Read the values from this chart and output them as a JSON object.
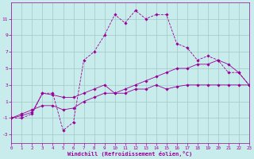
{
  "hours": [
    0,
    1,
    2,
    3,
    4,
    5,
    6,
    7,
    8,
    9,
    10,
    11,
    12,
    13,
    14,
    15,
    16,
    17,
    18,
    19,
    20,
    21,
    22,
    23
  ],
  "line1": [
    -1,
    -1,
    -0.5,
    2,
    2,
    -2.5,
    -1.5,
    6,
    7,
    9,
    11.5,
    10.5,
    12,
    11,
    11.5,
    11.5,
    8,
    7.5,
    6,
    6.5,
    6,
    4.5,
    4.5,
    3
  ],
  "line2": [
    -1,
    -0.7,
    -0.3,
    2,
    1.8,
    1.5,
    1.5,
    2,
    2.5,
    3,
    2,
    2.5,
    3,
    3.5,
    4,
    4.5,
    5,
    5,
    5.5,
    5.5,
    6,
    5.5,
    4.5,
    3
  ],
  "line3": [
    -1,
    -0.5,
    0,
    0.5,
    0.5,
    0,
    0.2,
    1,
    1.5,
    2,
    2,
    2,
    2.5,
    2.5,
    3,
    2.5,
    2.8,
    3,
    3,
    3,
    3,
    3,
    3,
    3
  ],
  "bg_color": "#c8ecec",
  "grid_color": "#a0c8c8",
  "line_color": "#990099",
  "xlabel": "Windchill (Refroidissement éolien,°C)",
  "yticks": [
    -3,
    -1,
    1,
    3,
    5,
    7,
    9,
    11
  ],
  "ylim": [
    -4.0,
    13.0
  ],
  "xlim": [
    0,
    23
  ],
  "xticks": [
    0,
    1,
    2,
    3,
    4,
    5,
    6,
    7,
    8,
    9,
    10,
    11,
    12,
    13,
    14,
    15,
    16,
    17,
    18,
    19,
    20,
    21,
    22,
    23
  ]
}
